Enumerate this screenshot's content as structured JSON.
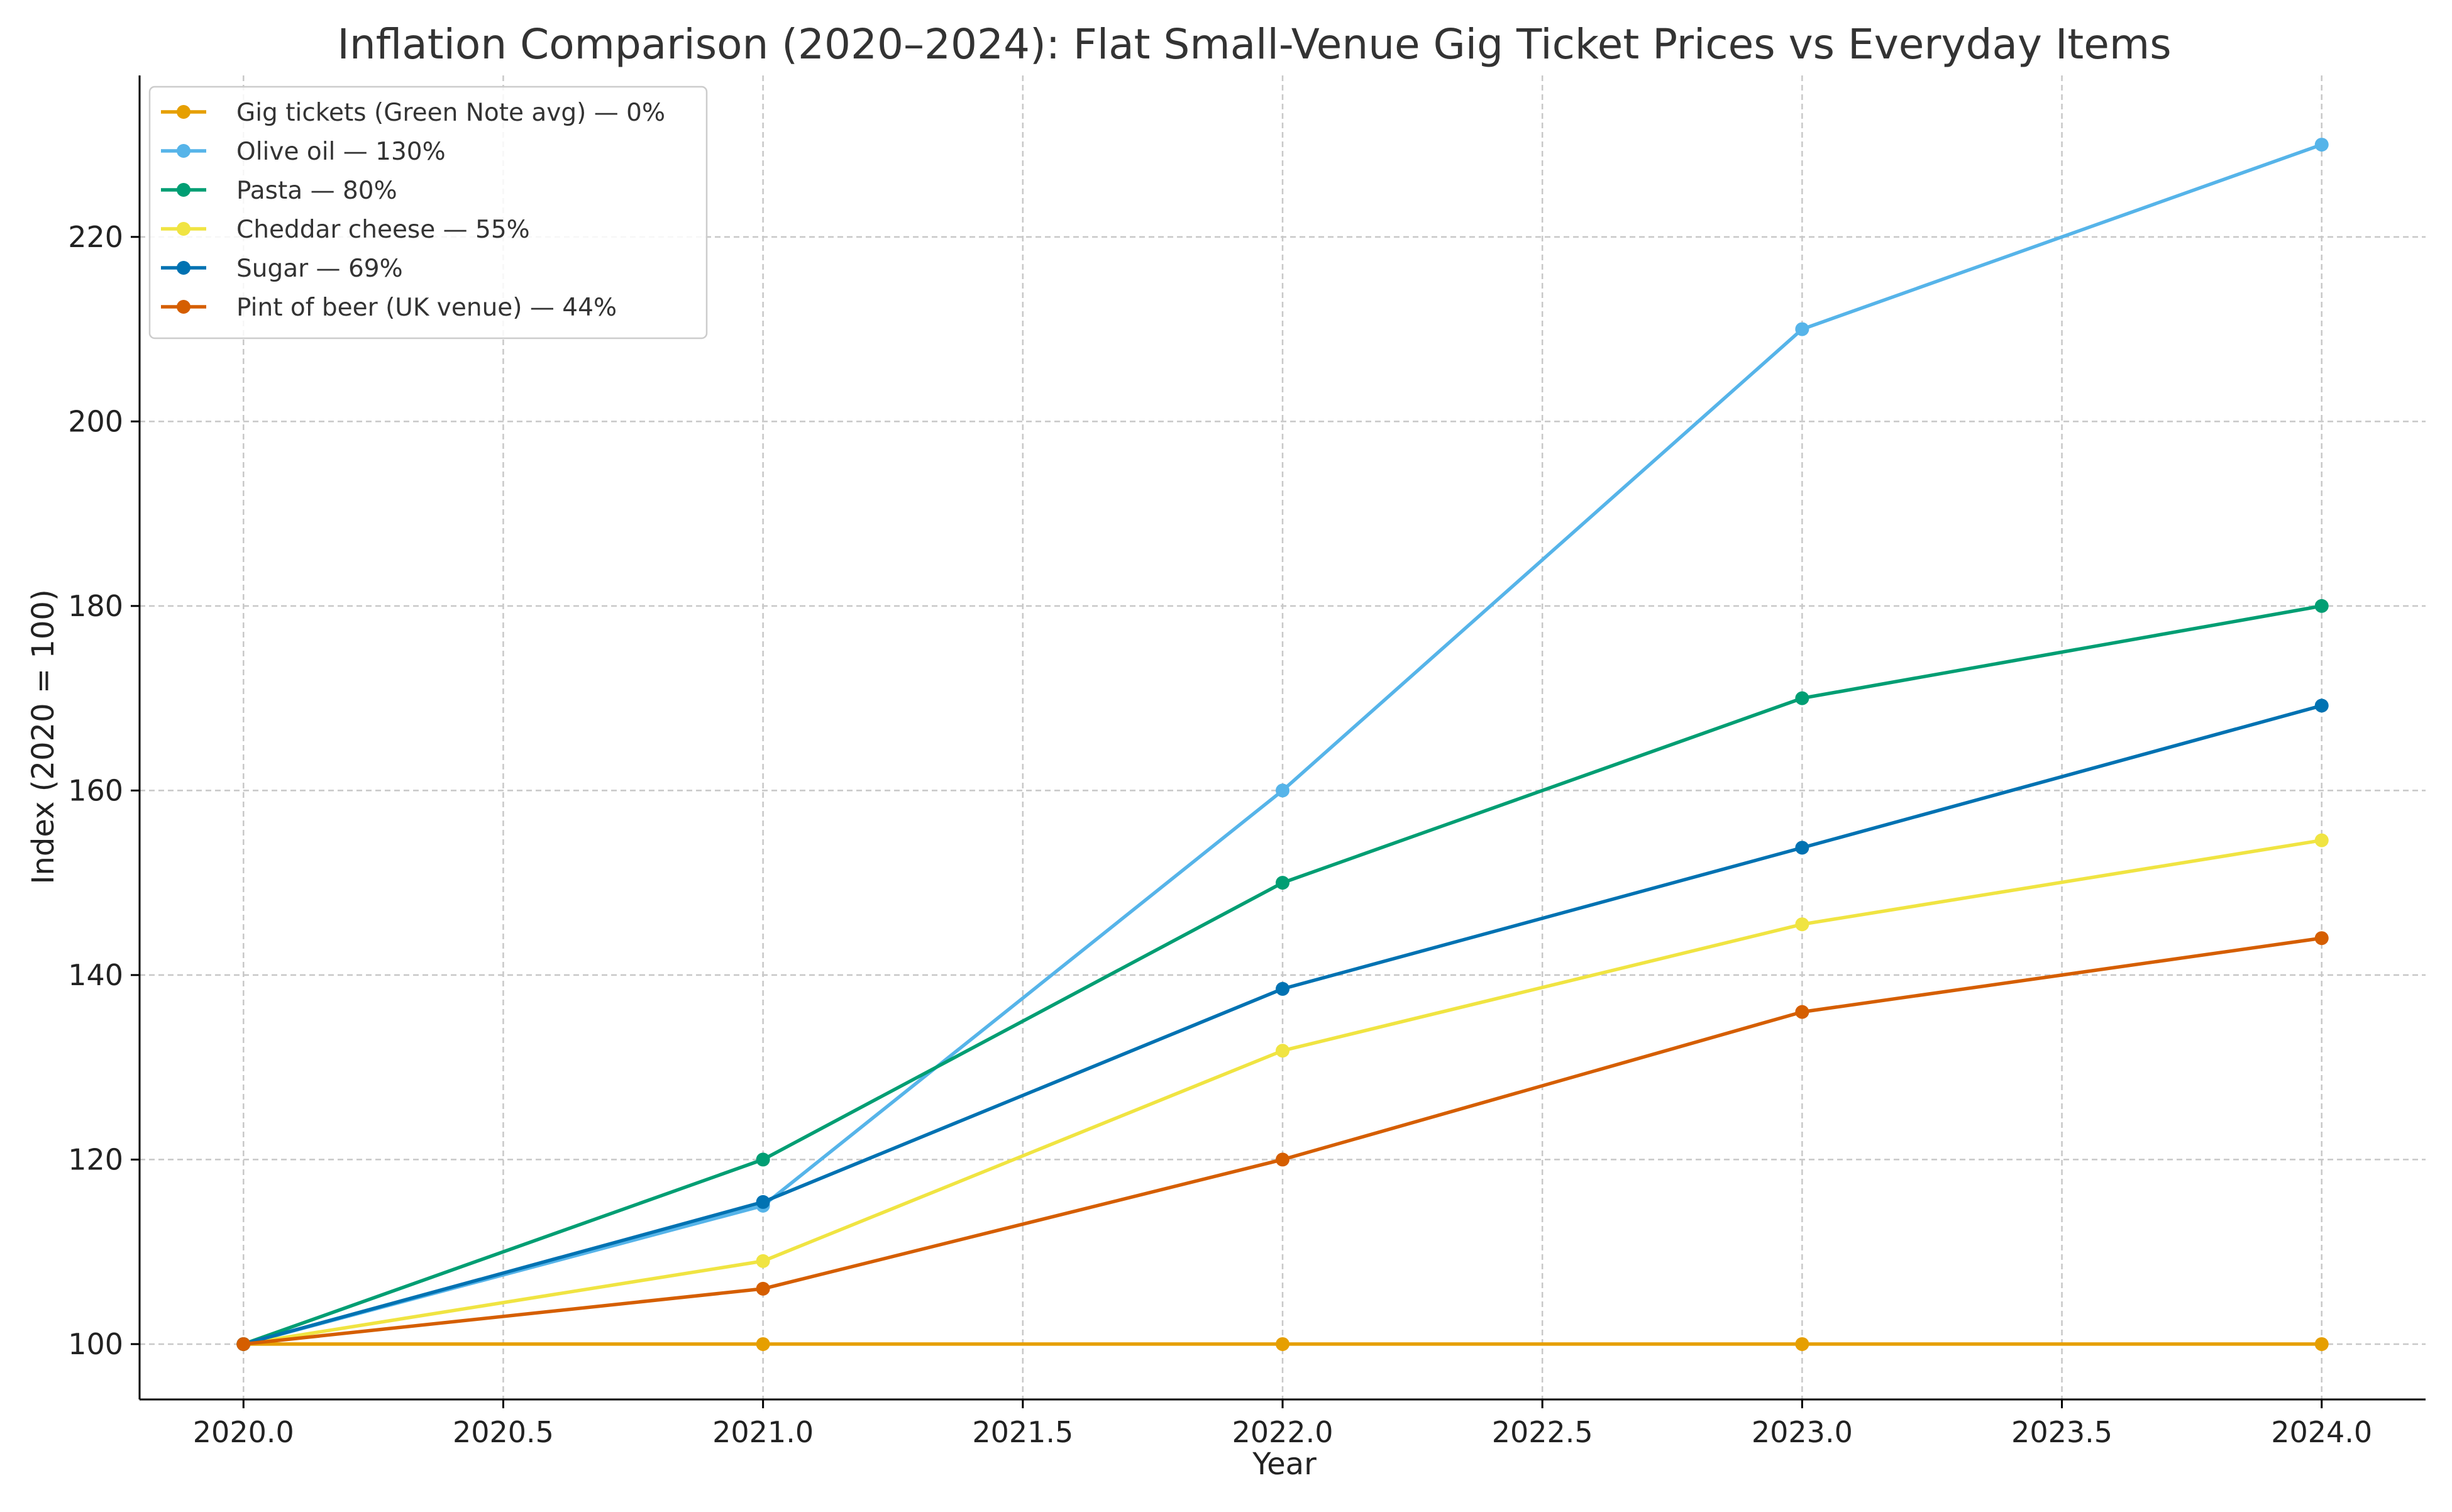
{
  "chart_data": {
    "type": "line",
    "title": "Inflation Comparison (2020–2024): Flat Small-Venue Gig Ticket Prices vs Everyday Items",
    "xlabel": "Year",
    "ylabel": "Index (2020 = 100)",
    "x": [
      2020,
      2021,
      2022,
      2023,
      2024
    ],
    "xlim": [
      2019.8,
      2024.2
    ],
    "ylim": [
      94,
      237.5
    ],
    "xticks": [
      2020.0,
      2020.5,
      2021.0,
      2021.5,
      2022.0,
      2022.5,
      2023.0,
      2023.5,
      2024.0
    ],
    "xtick_labels": [
      "2020.0",
      "2020.5",
      "2021.0",
      "2021.5",
      "2022.0",
      "2022.5",
      "2023.0",
      "2023.5",
      "2024.0"
    ],
    "yticks": [
      100,
      120,
      140,
      160,
      180,
      200,
      220
    ],
    "ytick_labels": [
      "100",
      "120",
      "140",
      "160",
      "180",
      "200",
      "220"
    ],
    "grid": true,
    "legend_position": "top-left",
    "series": [
      {
        "name": "Gig tickets (Green Note avg) — 0%",
        "color": "#E69F00",
        "values": [
          100,
          100,
          100,
          100,
          100
        ]
      },
      {
        "name": "Olive oil — 130%",
        "color": "#56B4E9",
        "values": [
          100,
          115,
          160,
          210,
          230
        ]
      },
      {
        "name": "Pasta — 80%",
        "color": "#009E73",
        "values": [
          100,
          120,
          150,
          170,
          180
        ]
      },
      {
        "name": "Cheddar cheese — 55%",
        "color": "#F0E442",
        "values": [
          100,
          109,
          131.8,
          145.5,
          154.6
        ]
      },
      {
        "name": "Sugar — 69%",
        "color": "#0072B2",
        "values": [
          100,
          115.4,
          138.5,
          153.8,
          169.2
        ]
      },
      {
        "name": "Pint of beer (UK venue) — 44%",
        "color": "#D55E00",
        "values": [
          100,
          106,
          120,
          136,
          144
        ]
      }
    ]
  }
}
